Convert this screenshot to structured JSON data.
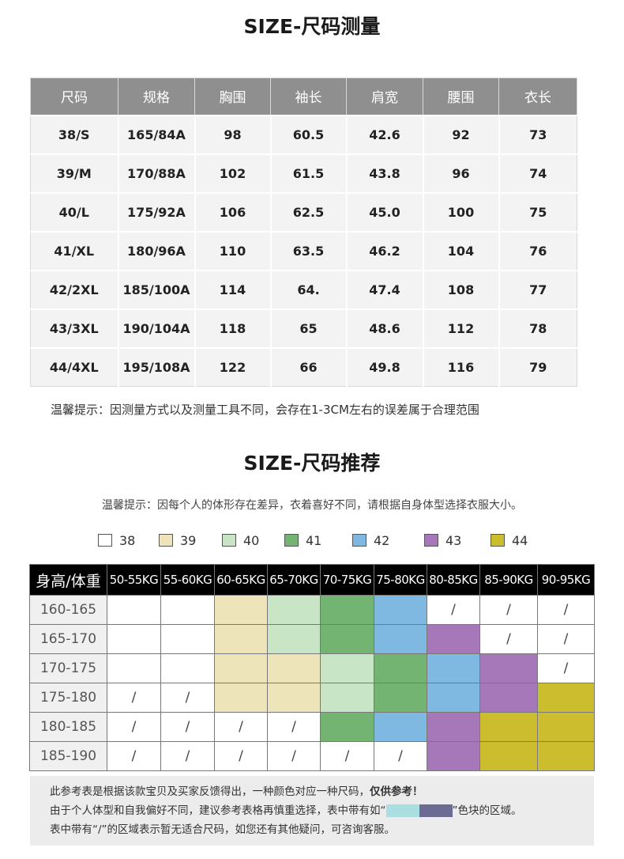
{
  "measure": {
    "title": "SIZE-尺码测量",
    "headers": [
      "尺码",
      "规格",
      "胸围",
      "袖长",
      "肩宽",
      "腰围",
      "衣长"
    ],
    "rows": [
      [
        "38/S",
        "165/84A",
        "98",
        "60.5",
        "42.6",
        "92",
        "73"
      ],
      [
        "39/M",
        "170/88A",
        "102",
        "61.5",
        "43.8",
        "96",
        "74"
      ],
      [
        "40/L",
        "175/92A",
        "106",
        "62.5",
        "45.0",
        "100",
        "75"
      ],
      [
        "41/XL",
        "180/96A",
        "110",
        "63.5",
        "46.2",
        "104",
        "76"
      ],
      [
        "42/2XL",
        "185/100A",
        "114",
        "64.",
        "47.4",
        "108",
        "77"
      ],
      [
        "43/3XL",
        "190/104A",
        "118",
        "65",
        "48.6",
        "112",
        "78"
      ],
      [
        "44/4XL",
        "195/108A",
        "122",
        "66",
        "49.8",
        "116",
        "79"
      ]
    ],
    "note": "温馨提示：因测量方式以及测量工具不同，会存在1-3CM左右的误差属于合理范围"
  },
  "recommend": {
    "title": "SIZE-尺码推荐",
    "note": "温馨提示：因每个人的体形存在差异，衣着喜好不同，请根据自身体型选择衣服大小。",
    "legend": [
      {
        "label": "38",
        "color": "#ffffff"
      },
      {
        "label": "39",
        "color": "#ede5b9"
      },
      {
        "label": "40",
        "color": "#c8e5c6"
      },
      {
        "label": "41",
        "color": "#74b472"
      },
      {
        "label": "42",
        "color": "#7fb8e0"
      },
      {
        "label": "43",
        "color": "#a678b9"
      },
      {
        "label": "44",
        "color": "#cbbd2e"
      }
    ],
    "corner": "身高/体重",
    "weights": [
      "50-55KG",
      "55-60KG",
      "60-65KG",
      "65-70KG",
      "70-75KG",
      "75-80KG",
      "80-85KG",
      "85-90KG",
      "90-95KG"
    ],
    "rows": [
      {
        "height": "160-165",
        "cells": [
          "",
          "",
          "39",
          "40",
          "41",
          "42",
          "/",
          "/",
          "/"
        ]
      },
      {
        "height": "165-170",
        "cells": [
          "",
          "",
          "39",
          "40",
          "41",
          "42",
          "43",
          "/",
          "/"
        ]
      },
      {
        "height": "170-175",
        "cells": [
          "",
          "",
          "39",
          "39",
          "40",
          "41",
          "42",
          "43",
          "/"
        ]
      },
      {
        "height": "175-180",
        "cells": [
          "/",
          "/",
          "39",
          "39",
          "40",
          "41",
          "42",
          "43",
          "44"
        ]
      },
      {
        "height": "180-185",
        "cells": [
          "/",
          "/",
          "/",
          "/",
          "41",
          "42",
          "43",
          "44",
          "44"
        ]
      },
      {
        "height": "185-190",
        "cells": [
          "/",
          "/",
          "/",
          "/",
          "/",
          "/",
          "43",
          "44",
          "44"
        ]
      }
    ],
    "footer": {
      "line1_pre": "此参考表是根据该款宝贝及买家反馈得出，一种颜色对应一种尺码，",
      "line1_bold": "仅供参考！",
      "line2_pre": "由于个人体型和自我偏好不同，建议参考表格再慎重选择，表中带有如“",
      "line2_post": "”色块的区域。",
      "line3": "表中带有“/”的区域表示暂无适合尺码，如您还有其他疑问，可咨询客服。",
      "chip_colors": [
        "#a9dfe0",
        "#6b6b93"
      ]
    }
  }
}
